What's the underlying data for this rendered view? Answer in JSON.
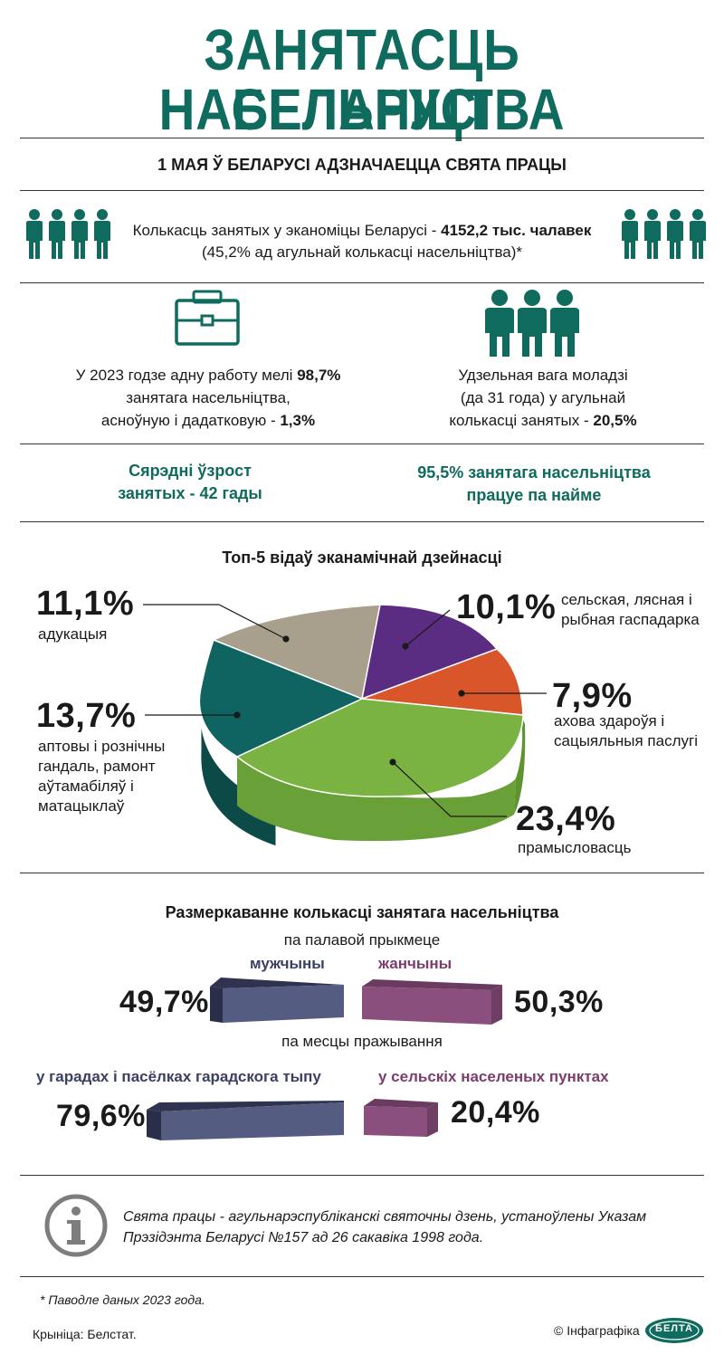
{
  "header": {
    "title_line1": "ЗАНЯТАСЦЬ НАСЕЛЬНІЦТВА",
    "title_line2": "БЕЛАРУСІ",
    "subtitle": "1 МАЯ Ў БЕЛАРУСІ АДЗНАЧАЕЦЦА СВЯТА ПРАЦЫ"
  },
  "employed": {
    "text_prefix": "Колькасць занятых у эканоміцы Беларусі - ",
    "text_value": "4152,2 тыс. чалавек",
    "text_line2": "(45,2% ад агульнай колькасці насельніцтва)*"
  },
  "one_job": {
    "line1_prefix": "У 2023 годзе адну работу мелі ",
    "line1_value": "98,7%",
    "line2": "занятага насельніцтва,",
    "line3_prefix": "асноўную і дадатковую - ",
    "line3_value": "1,3%"
  },
  "youth": {
    "line1": "Удзельная вага моладзі",
    "line2": "(да 31 года) у агульнай",
    "line3_prefix": "колькасці занятых - ",
    "line3_value": "20,5%"
  },
  "avg_age": {
    "line1": "Сярэдні ўзрост",
    "line2": "занятых - 42 гады"
  },
  "hired": {
    "line1": "95,5% занятага насельніцтва",
    "line2": "працуе па найме"
  },
  "chart_data": [
    {
      "type": "pie",
      "title": "Топ-5 відаў эканамічнай дзейнасці",
      "slices": [
        {
          "name": "адукацыя",
          "value": 11.1,
          "label": "11,1%",
          "color": "#a8a08c"
        },
        {
          "name": "сельская, лясная і рыбная гаспадарка",
          "value": 10.1,
          "label": "10,1%",
          "color": "#5a2c82"
        },
        {
          "name": "ахова здароўя і сацыяльныя паслугі",
          "value": 7.9,
          "label": "7,9%",
          "color": "#d9552a"
        },
        {
          "name": "прамысловасць",
          "value": 23.4,
          "label": "23,4%",
          "color": "#7bb342"
        },
        {
          "name": "аптовы і рознічны гандаль, рамонт аўтамабіляў і матацыклаў",
          "value": 13.7,
          "label": "13,7%",
          "color": "#0f6360"
        }
      ]
    },
    {
      "type": "bar",
      "title": "Размеркаванне колькасці занятага насельніцтва",
      "subtitle": "па палавой прыкмеце",
      "categories": [
        "мужчыны",
        "жанчыны"
      ],
      "values": [
        49.7,
        50.3
      ],
      "labels": [
        "49,7%",
        "50,3%"
      ],
      "colors": [
        "#555c82",
        "#8b4f7d"
      ]
    },
    {
      "type": "bar",
      "subtitle": "па месцы пражывання",
      "categories": [
        "у гарадах і пасёлках гарадскога тыпу",
        "у сельскіх населеных пунктах"
      ],
      "values": [
        79.6,
        20.4
      ],
      "labels": [
        "79,6%",
        "20,4%"
      ],
      "colors": [
        "#555c82",
        "#8b4f7d"
      ]
    }
  ],
  "info": {
    "line1": "Свята працы - агульнарэспубліканскі святочны дзень, устаноўлены Указам",
    "line2": "Прэзідэнта Беларусі №157 ад 26 сакавіка 1998 года."
  },
  "footnote": "* Паводле даных 2023 года.",
  "source": "Крыніца: Белстат.",
  "credit": "© Інфаграфіка",
  "logo_text": "БЕЛТА"
}
